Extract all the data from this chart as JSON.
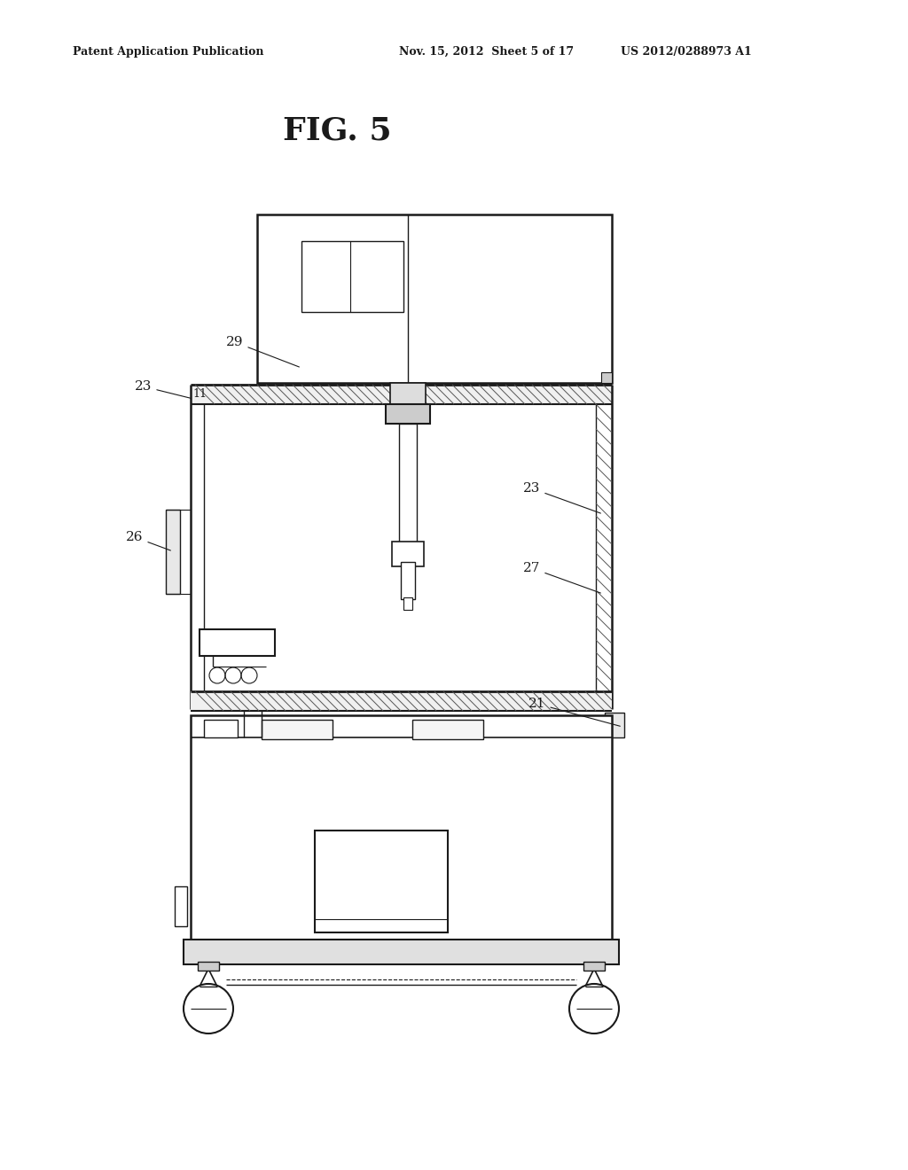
{
  "bg_color": "#ffffff",
  "line_color": "#1a1a1a",
  "header_left": "Patent Application Publication",
  "header_mid": "Nov. 15, 2012  Sheet 5 of 17",
  "header_right": "US 2012/0288973 A1",
  "fig_title": "FIG. 5"
}
